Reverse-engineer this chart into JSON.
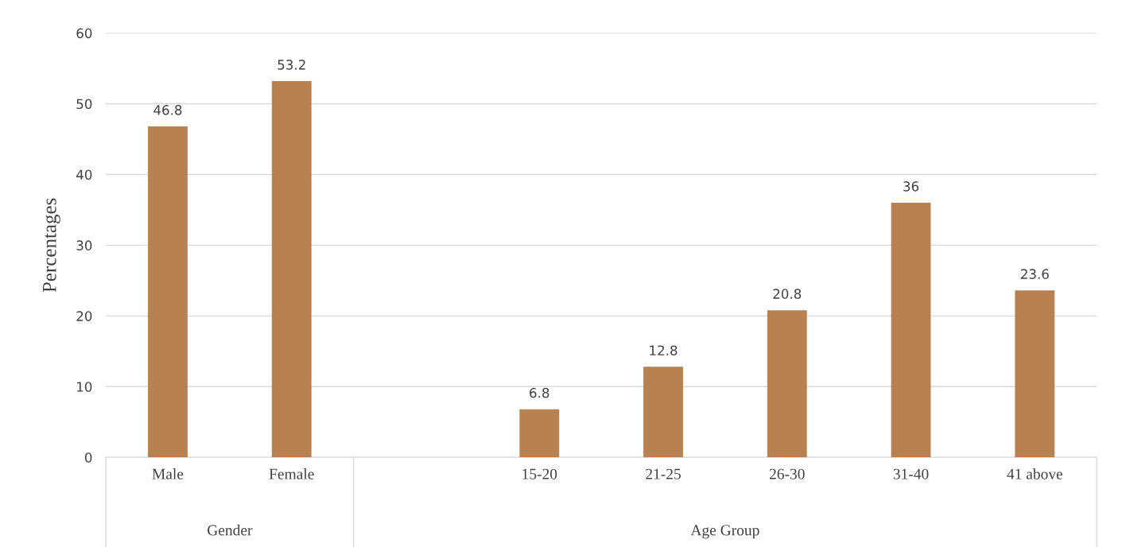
{
  "chart_data": {
    "type": "bar",
    "ylabel": "Percentages",
    "categories": [
      "Male",
      "Female",
      null,
      "15-20",
      "21-25",
      "26-30",
      "31-40",
      "41 above"
    ],
    "values": [
      46.8,
      53.2,
      null,
      6.8,
      12.8,
      20.8,
      36,
      23.6
    ],
    "color": "#b9814f",
    "ylim": [
      0,
      60
    ],
    "yticks": [
      0,
      10,
      20,
      30,
      40,
      50,
      60
    ],
    "grid": "y",
    "data_labels": true,
    "annotations": [
      "Gender",
      "Age Group"
    ]
  }
}
